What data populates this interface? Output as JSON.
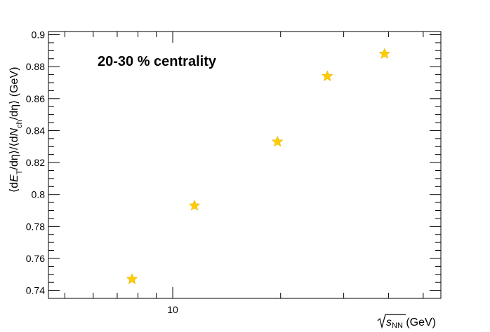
{
  "chart_data": {
    "type": "scatter",
    "x_scale": "log",
    "xlim": [
      4.5,
      56
    ],
    "ylim": [
      0.735,
      0.902
    ],
    "yticks_major": [
      0.74,
      0.76,
      0.78,
      0.8,
      0.82,
      0.84,
      0.86,
      0.88,
      0.9
    ],
    "ytick_labels": [
      "0.74",
      "0.76",
      "0.78",
      "0.8",
      "0.82",
      "0.84",
      "0.86",
      "0.88",
      "0.9"
    ],
    "xticks_labeled": [
      10
    ],
    "xtick_labels": [
      "10"
    ],
    "xticks_minor": [
      5,
      6,
      7,
      8,
      9,
      20,
      30,
      40,
      50
    ],
    "ylabel": "⟨dE_T/dη⟩/⟨dN_ch/dη⟩ (GeV)",
    "ylabel_parts": {
      "p1": "⟨d",
      "E": "E",
      "T": "T",
      "p2": "/dη⟩/⟨d",
      "N": "N",
      "ch": "ch",
      "p3": "/dη⟩ (GeV)"
    },
    "xlabel": "√s_NN (GeV)",
    "xlabel_parts": {
      "s": "s",
      "nn": "NN",
      "unit": " (GeV)"
    },
    "annotation": "20-30 % centrality",
    "grid": false,
    "marker": "star",
    "marker_color": "#ffcc00",
    "x": [
      7.7,
      11.5,
      19.6,
      27,
      39
    ],
    "y": [
      0.747,
      0.793,
      0.833,
      0.874,
      0.888
    ]
  }
}
